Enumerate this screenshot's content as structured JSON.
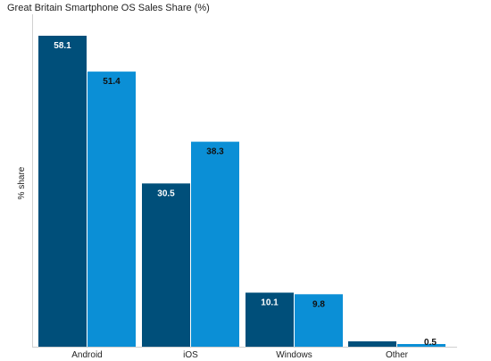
{
  "chart_data": {
    "type": "bar",
    "title": "Great Britain Smartphone OS Sales Share (%)",
    "xlabel": "",
    "ylabel": "% share",
    "categories": [
      "Android",
      "iOS",
      "Windows",
      "Other"
    ],
    "series": [
      {
        "values": [
          58.1,
          30.5,
          10.1,
          1.0
        ],
        "color": "#004f7a",
        "labels": [
          "58.1",
          "30.5",
          "10.1",
          ""
        ],
        "label_color": "#ffffff"
      },
      {
        "values": [
          51.4,
          38.3,
          9.8,
          0.5
        ],
        "color": "#0b8fd6",
        "labels": [
          "51.4",
          "38.3",
          "9.8",
          "0.5"
        ],
        "label_color": "#111111"
      }
    ],
    "ylim": [
      0,
      60
    ],
    "grid": false,
    "legend": "none"
  }
}
